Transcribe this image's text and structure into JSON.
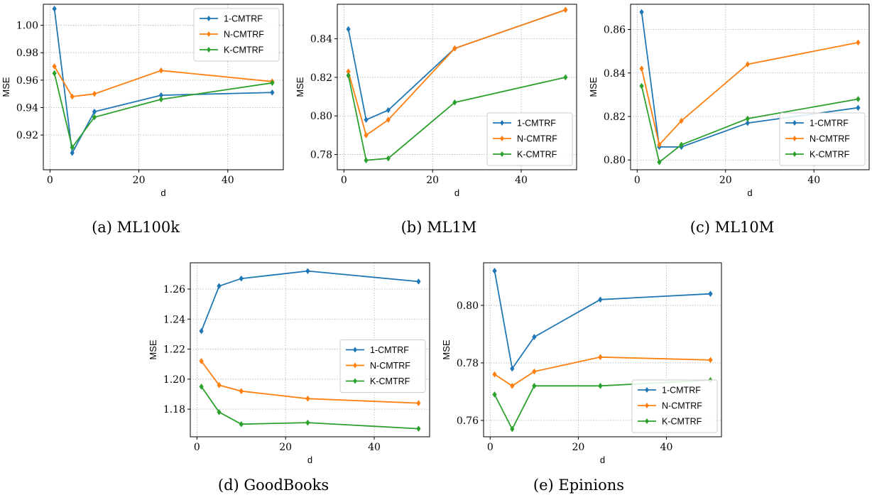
{
  "chart_data": [
    {
      "type": "line",
      "caption": "(a) ML100k",
      "xlabel": "d",
      "ylabel": "MSE",
      "x": [
        1,
        5,
        10,
        25,
        50
      ],
      "xlim": [
        -1.5,
        52.5
      ],
      "ylim": [
        0.8947,
        1.0153
      ],
      "xticks": [
        0,
        20,
        40
      ],
      "yticks": [
        0.92,
        0.94,
        0.96,
        0.98,
        1.0
      ],
      "ytick_labels": [
        "0.92",
        "0.94",
        "0.96",
        "0.98",
        "1.00"
      ],
      "grid": true,
      "legend_position": "upper-right",
      "series": [
        {
          "name": "1-CMTRF",
          "values": [
            1.012,
            0.907,
            0.937,
            0.949,
            0.951
          ]
        },
        {
          "name": "N-CMTRF",
          "values": [
            0.97,
            0.948,
            0.95,
            0.967,
            0.959
          ]
        },
        {
          "name": "K-CMTRF",
          "values": [
            0.965,
            0.911,
            0.933,
            0.946,
            0.958
          ]
        }
      ]
    },
    {
      "type": "line",
      "caption": "(b) ML1M",
      "xlabel": "d",
      "ylabel": "MSE",
      "x": [
        1,
        5,
        10,
        25,
        50
      ],
      "xlim": [
        -1.5,
        52.5
      ],
      "ylim": [
        0.7721,
        0.8579
      ],
      "xticks": [
        0,
        20,
        40
      ],
      "yticks": [
        0.78,
        0.8,
        0.82,
        0.84
      ],
      "ytick_labels": [
        "0.78",
        "0.80",
        "0.82",
        "0.84"
      ],
      "grid": true,
      "legend_position": "lower-right",
      "series": [
        {
          "name": "1-CMTRF",
          "values": [
            0.845,
            0.798,
            0.803,
            0.835,
            0.855
          ]
        },
        {
          "name": "N-CMTRF",
          "values": [
            0.823,
            0.79,
            0.798,
            0.835,
            0.855
          ]
        },
        {
          "name": "K-CMTRF",
          "values": [
            0.821,
            0.777,
            0.778,
            0.807,
            0.82
          ]
        }
      ]
    },
    {
      "type": "line",
      "caption": "(c) ML10M",
      "xlabel": "d",
      "ylabel": "MSE",
      "x": [
        1,
        5,
        10,
        25,
        50
      ],
      "xlim": [
        -1.5,
        52.5
      ],
      "ylim": [
        0.7955,
        0.8716
      ],
      "xticks": [
        0,
        20,
        40
      ],
      "yticks": [
        0.8,
        0.82,
        0.84,
        0.86
      ],
      "ytick_labels": [
        "0.80",
        "0.82",
        "0.84",
        "0.86"
      ],
      "grid": true,
      "legend_position": "lower-right",
      "series": [
        {
          "name": "1-CMTRF",
          "values": [
            0.868,
            0.806,
            0.806,
            0.817,
            0.824
          ]
        },
        {
          "name": "N-CMTRF",
          "values": [
            0.842,
            0.807,
            0.818,
            0.844,
            0.854
          ]
        },
        {
          "name": "K-CMTRF",
          "values": [
            0.834,
            0.799,
            0.807,
            0.819,
            0.828
          ]
        }
      ]
    },
    {
      "type": "line",
      "caption": "(d) GoodBooks",
      "xlabel": "d",
      "ylabel": "MSE",
      "x": [
        1,
        5,
        10,
        25,
        50
      ],
      "xlim": [
        -1.5,
        52.5
      ],
      "ylim": [
        1.1616,
        1.2775
      ],
      "xticks": [
        0,
        20,
        40
      ],
      "yticks": [
        1.18,
        1.2,
        1.22,
        1.24,
        1.26
      ],
      "ytick_labels": [
        "1.18",
        "1.20",
        "1.22",
        "1.24",
        "1.26"
      ],
      "grid": true,
      "legend_position": "center-right",
      "series": [
        {
          "name": "1-CMTRF",
          "values": [
            1.232,
            1.262,
            1.267,
            1.272,
            1.265
          ]
        },
        {
          "name": "N-CMTRF",
          "values": [
            1.212,
            1.196,
            1.192,
            1.187,
            1.184
          ]
        },
        {
          "name": "K-CMTRF",
          "values": [
            1.195,
            1.178,
            1.17,
            1.171,
            1.167
          ]
        }
      ]
    },
    {
      "type": "line",
      "caption": "(e) Epinions",
      "xlabel": "d",
      "ylabel": "MSE",
      "x": [
        1,
        5,
        10,
        25,
        50
      ],
      "xlim": [
        -1.5,
        52.5
      ],
      "ylim": [
        0.7543,
        0.8148
      ],
      "xticks": [
        0,
        20,
        40
      ],
      "yticks": [
        0.76,
        0.78,
        0.8
      ],
      "ytick_labels": [
        "0.76",
        "0.78",
        "0.80"
      ],
      "grid": true,
      "legend_position": "lower-right",
      "series": [
        {
          "name": "1-CMTRF",
          "values": [
            0.812,
            0.778,
            0.789,
            0.802,
            0.804
          ]
        },
        {
          "name": "N-CMTRF",
          "values": [
            0.776,
            0.772,
            0.777,
            0.782,
            0.781
          ]
        },
        {
          "name": "K-CMTRF",
          "values": [
            0.769,
            0.757,
            0.772,
            0.772,
            0.774
          ]
        }
      ]
    }
  ],
  "colors": [
    "#1f77b4",
    "#ff7f0e",
    "#2ca02c"
  ]
}
